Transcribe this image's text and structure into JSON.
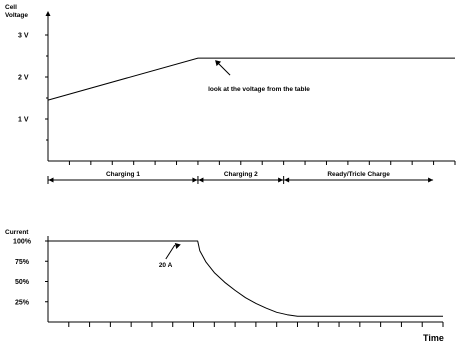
{
  "chart_data": [
    {
      "type": "line",
      "ylabel": "Cell\nVoltage",
      "xlabel": "",
      "yticks": [
        "3 V",
        "2 V",
        "1 V"
      ],
      "ytick_values": [
        3,
        2,
        1
      ],
      "ylim": [
        0,
        3.5
      ],
      "x": [
        0,
        7,
        19
      ],
      "series": [
        {
          "values": [
            1.45,
            2.45,
            2.45
          ]
        }
      ],
      "annotations": [
        {
          "text": "look at the voltage from the table",
          "x": 7.8,
          "y": 2.45
        }
      ],
      "phases": [
        {
          "label": "Charging 1",
          "from": 0,
          "to": 7
        },
        {
          "label": "Charging 2",
          "from": 7,
          "to": 11
        },
        {
          "label": "Ready/Tricle Charge",
          "from": 11,
          "to": 18
        }
      ],
      "grid": false
    },
    {
      "type": "line",
      "ylabel": "Current",
      "xlabel": "Time",
      "yticks": [
        "100%",
        "75%",
        "50%",
        "25%"
      ],
      "ytick_values": [
        100,
        75,
        50,
        25
      ],
      "ylim": [
        0,
        100
      ],
      "x": [
        0,
        7.2,
        7.3,
        7.6,
        8,
        8.5,
        9,
        9.5,
        10,
        10.5,
        11,
        11.5,
        12,
        19
      ],
      "series": [
        {
          "values": [
            100,
            100,
            88,
            74,
            61,
            49,
            39,
            30,
            23,
            17,
            12,
            9,
            7,
            7
          ]
        }
      ],
      "annotations": [
        {
          "text": "20 A",
          "x": 6.1,
          "y": 100
        }
      ],
      "grid": false
    }
  ]
}
